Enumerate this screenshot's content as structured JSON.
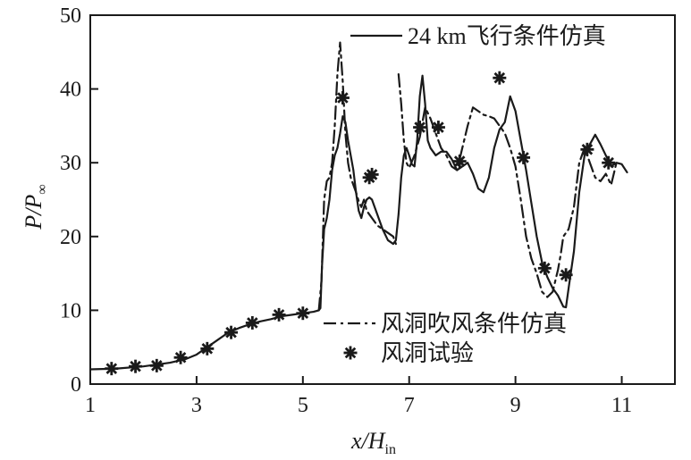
{
  "chart_data": {
    "type": "line",
    "xlabel": {
      "main": "x/H",
      "sub": "in"
    },
    "ylabel": {
      "main": "P/P",
      "sub": "∞"
    },
    "xlim": [
      1,
      12
    ],
    "ylim": [
      0,
      50
    ],
    "xticks": [
      1,
      3,
      5,
      7,
      9,
      11
    ],
    "yticks": [
      0,
      10,
      20,
      30,
      40,
      50
    ],
    "grid": false,
    "series": [
      {
        "name": "24 km飞行条件仿真",
        "style": "solid",
        "color": "#1a1a1a",
        "segments": [
          [
            [
              1.0,
              2.0
            ],
            [
              1.5,
              2.1
            ],
            [
              2.0,
              2.4
            ],
            [
              2.5,
              2.9
            ],
            [
              2.8,
              3.4
            ],
            [
              3.0,
              4.0
            ],
            [
              3.2,
              5.0
            ],
            [
              3.4,
              6.0
            ],
            [
              3.6,
              7.0
            ],
            [
              3.8,
              7.6
            ],
            [
              4.0,
              8.1
            ],
            [
              4.2,
              8.5
            ],
            [
              4.4,
              8.8
            ],
            [
              4.6,
              9.2
            ],
            [
              4.8,
              9.4
            ],
            [
              5.0,
              9.6
            ],
            [
              5.2,
              9.8
            ],
            [
              5.3,
              10.0
            ],
            [
              5.33,
              10.3
            ],
            [
              5.36,
              16.0
            ],
            [
              5.4,
              21.0
            ],
            [
              5.45,
              22.5
            ],
            [
              5.5,
              25.0
            ],
            [
              5.55,
              29.0
            ],
            [
              5.6,
              31.0
            ],
            [
              5.65,
              32.0
            ],
            [
              5.7,
              34.0
            ],
            [
              5.75,
              36.3
            ],
            [
              5.8,
              35.5
            ],
            [
              5.85,
              33.0
            ],
            [
              5.9,
              31.0
            ],
            [
              5.95,
              29.0
            ],
            [
              6.0,
              26.0
            ],
            [
              6.05,
              23.5
            ],
            [
              6.1,
              22.5
            ],
            [
              6.15,
              24.0
            ],
            [
              6.2,
              25.0
            ],
            [
              6.25,
              25.3
            ],
            [
              6.3,
              25.0
            ],
            [
              6.35,
              24.0
            ],
            [
              6.4,
              23.0
            ],
            [
              6.5,
              21.0
            ],
            [
              6.6,
              19.5
            ],
            [
              6.7,
              19.0
            ],
            [
              6.75,
              19.5
            ],
            [
              6.8,
              23.0
            ],
            [
              6.85,
              28.0
            ],
            [
              6.9,
              31.0
            ],
            [
              6.95,
              32.0
            ],
            [
              7.0,
              31.0
            ],
            [
              7.05,
              29.8
            ],
            [
              7.1,
              29.5
            ],
            [
              7.15,
              33.0
            ],
            [
              7.2,
              39.0
            ],
            [
              7.25,
              41.8
            ],
            [
              7.3,
              38.0
            ],
            [
              7.35,
              33.0
            ],
            [
              7.4,
              32.0
            ],
            [
              7.5,
              31.0
            ],
            [
              7.6,
              31.5
            ],
            [
              7.7,
              31.5
            ],
            [
              7.8,
              30.5
            ],
            [
              7.9,
              29.0
            ],
            [
              8.0,
              29.5
            ],
            [
              8.1,
              30.0
            ],
            [
              8.2,
              28.5
            ],
            [
              8.3,
              26.5
            ],
            [
              8.4,
              26.0
            ],
            [
              8.5,
              28.0
            ],
            [
              8.6,
              32.0
            ],
            [
              8.7,
              34.5
            ],
            [
              8.8,
              35.5
            ],
            [
              8.9,
              39.0
            ],
            [
              9.0,
              37.0
            ],
            [
              9.1,
              33.0
            ],
            [
              9.2,
              29.0
            ],
            [
              9.3,
              24.5
            ],
            [
              9.4,
              20.0
            ],
            [
              9.5,
              16.5
            ],
            [
              9.6,
              14.5
            ],
            [
              9.7,
              13.0
            ],
            [
              9.8,
              12.0
            ],
            [
              9.9,
              10.5
            ],
            [
              9.95,
              10.4
            ],
            [
              10.0,
              13.0
            ],
            [
              10.1,
              18.0
            ],
            [
              10.2,
              26.0
            ],
            [
              10.3,
              31.0
            ],
            [
              10.4,
              32.5
            ],
            [
              10.5,
              33.8
            ],
            [
              10.6,
              32.5
            ],
            [
              10.7,
              31.0
            ],
            [
              10.8,
              29.5
            ],
            [
              10.9,
              30.0
            ],
            [
              11.0,
              29.8
            ],
            [
              11.1,
              28.7
            ]
          ]
        ]
      },
      {
        "name": "风洞吹风条件仿真",
        "style": "dashdot",
        "color": "#1a1a1a",
        "segments": [
          [
            [
              5.3,
              10.0
            ],
            [
              5.35,
              14.0
            ],
            [
              5.4,
              25.0
            ],
            [
              5.45,
              27.5
            ],
            [
              5.5,
              28.0
            ],
            [
              5.55,
              30.0
            ],
            [
              5.6,
              35.0
            ],
            [
              5.65,
              42.0
            ],
            [
              5.7,
              46.3
            ],
            [
              5.75,
              41.0
            ],
            [
              5.8,
              34.0
            ],
            [
              5.85,
              30.0
            ],
            [
              5.9,
              28.0
            ],
            [
              5.95,
              27.0
            ],
            [
              6.0,
              26.0
            ],
            [
              6.05,
              24.8
            ],
            [
              6.1,
              24.0
            ],
            [
              6.15,
              25.0
            ],
            [
              6.2,
              23.5
            ],
            [
              6.3,
              22.5
            ],
            [
              6.4,
              21.5
            ],
            [
              6.5,
              21.0
            ],
            [
              6.6,
              20.5
            ],
            [
              6.7,
              20.0
            ],
            [
              6.75,
              19.0
            ]
          ],
          [
            [
              6.8,
              42.0
            ],
            [
              6.85,
              38.0
            ],
            [
              6.9,
              33.0
            ],
            [
              6.95,
              30.0
            ],
            [
              7.0,
              29.3
            ],
            [
              7.1,
              31.0
            ],
            [
              7.2,
              33.5
            ],
            [
              7.3,
              37.5
            ],
            [
              7.4,
              36.0
            ],
            [
              7.5,
              34.0
            ],
            [
              7.6,
              32.0
            ],
            [
              7.7,
              31.0
            ],
            [
              7.8,
              29.5
            ],
            [
              7.9,
              29.0
            ],
            [
              7.95,
              30.5
            ],
            [
              8.0,
              32.0
            ],
            [
              8.1,
              35.0
            ],
            [
              8.2,
              37.5
            ],
            [
              8.3,
              37.0
            ],
            [
              8.4,
              36.5
            ],
            [
              8.5,
              36.3
            ],
            [
              8.6,
              36.0
            ],
            [
              8.7,
              35.0
            ],
            [
              8.8,
              34.0
            ],
            [
              8.9,
              32.0
            ],
            [
              9.0,
              29.5
            ],
            [
              9.1,
              25.0
            ],
            [
              9.2,
              20.0
            ],
            [
              9.3,
              17.0
            ],
            [
              9.4,
              15.0
            ],
            [
              9.5,
              12.5
            ],
            [
              9.6,
              11.8
            ],
            [
              9.7,
              12.5
            ],
            [
              9.8,
              15.5
            ],
            [
              9.85,
              17.5
            ],
            [
              9.9,
              20.0
            ],
            [
              10.0,
              21.0
            ],
            [
              10.1,
              24.0
            ],
            [
              10.2,
              30.0
            ],
            [
              10.3,
              32.0
            ],
            [
              10.4,
              30.0
            ],
            [
              10.5,
              28.0
            ],
            [
              10.6,
              27.5
            ],
            [
              10.7,
              28.5
            ],
            [
              10.8,
              27.0
            ],
            [
              10.9,
              30.0
            ]
          ]
        ]
      },
      {
        "name": "风洞试验",
        "style": "markers",
        "marker": "asterisk",
        "color": "#1a1a1a",
        "points": [
          [
            1.4,
            2.1
          ],
          [
            1.85,
            2.4
          ],
          [
            2.25,
            2.5
          ],
          [
            2.7,
            3.6
          ],
          [
            3.2,
            4.8
          ],
          [
            3.65,
            7.0
          ],
          [
            4.05,
            8.3
          ],
          [
            4.55,
            9.4
          ],
          [
            5.0,
            9.6
          ],
          [
            5.75,
            38.8
          ],
          [
            6.25,
            28.0
          ],
          [
            6.3,
            28.4
          ],
          [
            7.2,
            34.8
          ],
          [
            7.55,
            34.8
          ],
          [
            7.95,
            30.2
          ],
          [
            8.7,
            41.5
          ],
          [
            9.15,
            30.7
          ],
          [
            9.55,
            15.7
          ],
          [
            9.95,
            14.8
          ],
          [
            10.35,
            31.8
          ],
          [
            10.75,
            30.0
          ]
        ]
      }
    ],
    "legend": [
      {
        "position": "top-right",
        "entries": [
          0
        ]
      },
      {
        "position": "lower-middle",
        "entries": [
          1,
          2
        ]
      }
    ]
  }
}
